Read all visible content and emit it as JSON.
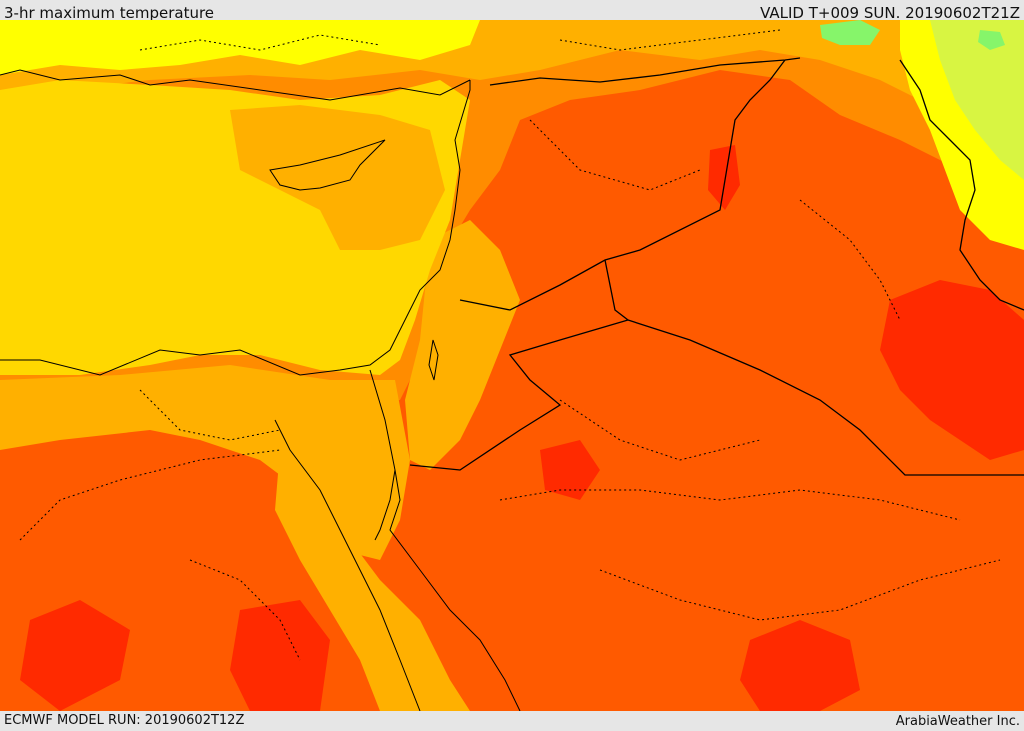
{
  "header": {
    "title": "3-hr maximum temperature",
    "valid": "VALID T+009 SUN. 20190602T21Z"
  },
  "footer": {
    "model_run": "ECMWF MODEL RUN: 20190602T12Z",
    "credit": "ArabiaWeather Inc."
  },
  "colors": {
    "cool_green": "#86f56a",
    "yellow_green": "#d8f542",
    "yellow": "#ffff00",
    "gold": "#ffd800",
    "amber": "#ffb000",
    "orange": "#ff8c00",
    "orange_red": "#ff5a00",
    "red": "#ff2a00",
    "border": "#000000"
  }
}
